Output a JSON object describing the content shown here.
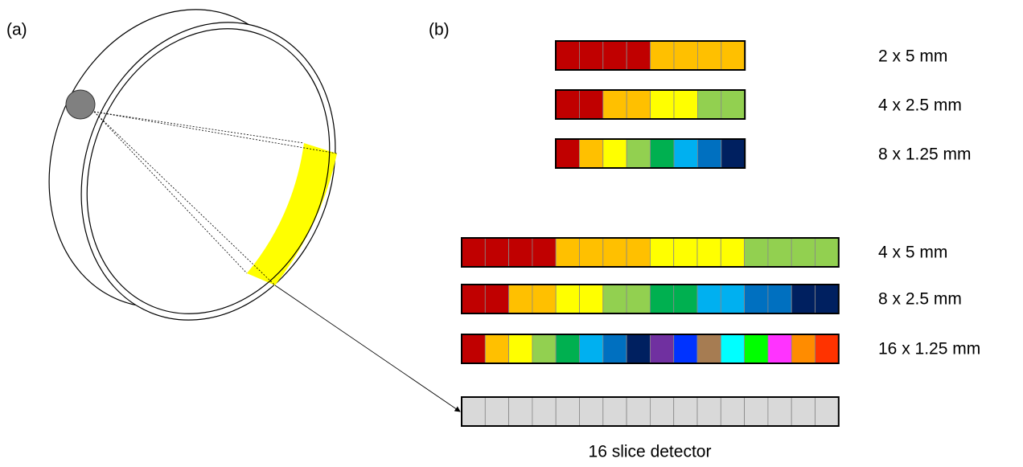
{
  "panel_labels": [
    "(a)",
    "(b)"
  ],
  "top_rows": [
    {
      "label": "2 x 5 mm",
      "cells": [
        "#c00000",
        "#c00000",
        "#c00000",
        "#c00000",
        "#ffc000",
        "#ffc000",
        "#ffc000",
        "#ffc000"
      ]
    },
    {
      "label": "4 x 2.5 mm",
      "cells": [
        "#c00000",
        "#c00000",
        "#ffc000",
        "#ffc000",
        "#ffff00",
        "#ffff00",
        "#92d050",
        "#92d050"
      ]
    },
    {
      "label": "8 x 1.25 mm",
      "cells": [
        "#c00000",
        "#ffc000",
        "#ffff00",
        "#92d050",
        "#00b050",
        "#00b0f0",
        "#0070c0",
        "#002060"
      ]
    }
  ],
  "bottom_rows": [
    {
      "label": "4 x 5 mm",
      "cells": [
        "#c00000",
        "#c00000",
        "#c00000",
        "#c00000",
        "#ffc000",
        "#ffc000",
        "#ffc000",
        "#ffc000",
        "#ffff00",
        "#ffff00",
        "#ffff00",
        "#ffff00",
        "#92d050",
        "#92d050",
        "#92d050",
        "#92d050"
      ]
    },
    {
      "label": "8 x 2.5 mm",
      "cells": [
        "#c00000",
        "#c00000",
        "#ffc000",
        "#ffc000",
        "#ffff00",
        "#ffff00",
        "#92d050",
        "#92d050",
        "#00b050",
        "#00b050",
        "#00b0f0",
        "#00b0f0",
        "#0070c0",
        "#0070c0",
        "#002060",
        "#002060"
      ]
    },
    {
      "label": "16 x 1.25 mm",
      "cells": [
        "#c00000",
        "#ffc000",
        "#ffff00",
        "#92d050",
        "#00b050",
        "#00b0f0",
        "#0070c0",
        "#002060",
        "#7030a0",
        "#0033ff",
        "#a67c52",
        "#00ffff",
        "#00ff00",
        "#ff33ff",
        "#ff8c00",
        "#ff3300"
      ]
    }
  ],
  "detector": {
    "label": "16 slice detector",
    "cells": [
      "#d9d9d9",
      "#d9d9d9",
      "#d9d9d9",
      "#d9d9d9",
      "#d9d9d9",
      "#d9d9d9",
      "#d9d9d9",
      "#d9d9d9",
      "#d9d9d9",
      "#d9d9d9",
      "#d9d9d9",
      "#d9d9d9",
      "#d9d9d9",
      "#d9d9d9",
      "#d9d9d9",
      "#d9d9d9"
    ]
  }
}
